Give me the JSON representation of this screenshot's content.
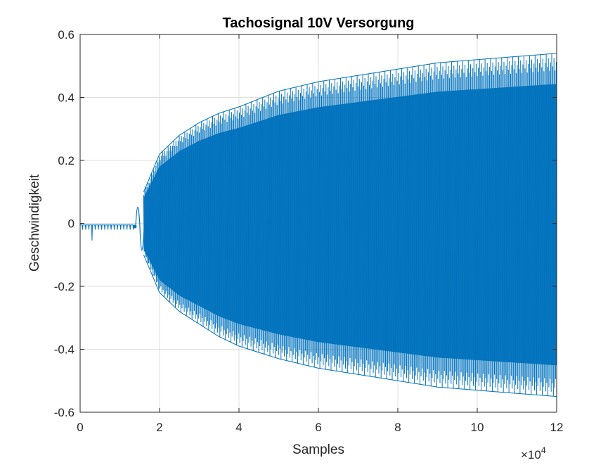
{
  "chart_data": {
    "type": "line",
    "title": "Tachosignal 10V Versorgung",
    "xlabel": "Samples",
    "ylabel": "Geschwindigkeit",
    "x_exponent_label": "×10",
    "x_exponent_power": "4",
    "xlim": [
      0,
      12
    ],
    "ylim": [
      -0.6,
      0.6
    ],
    "x_unit_multiplier": 10000,
    "xticks": [
      0,
      2,
      4,
      6,
      8,
      10,
      12
    ],
    "xtick_labels": [
      "0",
      "2",
      "4",
      "6",
      "8",
      "10",
      "12"
    ],
    "yticks": [
      -0.6,
      -0.4,
      -0.2,
      0,
      0.2,
      0.4,
      0.6
    ],
    "ytick_labels": [
      "-0.6",
      "-0.4",
      "-0.2",
      "0",
      "0.2",
      "0.4",
      "0.6"
    ],
    "grid": true,
    "line_color": "#0072BD",
    "series": [
      {
        "description_type": "oscillating signal envelope",
        "pre_start": {
          "x_range": [
            0,
            1.4
          ],
          "baseline": -0.005,
          "spike_min": -0.055
        },
        "startup_bump": {
          "x": 1.5,
          "max": 0.055,
          "min": -0.09
        },
        "upper_envelope": {
          "x": [
            1.6,
            2.0,
            2.5,
            3.0,
            3.5,
            4.0,
            5.0,
            6.0,
            7.0,
            8.0,
            9.0,
            10.0,
            11.0,
            12.0
          ],
          "y": [
            0.1,
            0.22,
            0.28,
            0.32,
            0.35,
            0.37,
            0.42,
            0.45,
            0.47,
            0.49,
            0.51,
            0.52,
            0.53,
            0.54
          ]
        },
        "lower_envelope": {
          "x": [
            1.6,
            2.0,
            2.5,
            3.0,
            3.5,
            4.0,
            5.0,
            6.0,
            7.0,
            8.0,
            9.0,
            10.0,
            11.0,
            12.0
          ],
          "y": [
            -0.1,
            -0.22,
            -0.28,
            -0.32,
            -0.36,
            -0.39,
            -0.43,
            -0.46,
            -0.48,
            -0.5,
            -0.52,
            -0.53,
            -0.54,
            -0.55
          ]
        }
      }
    ]
  }
}
